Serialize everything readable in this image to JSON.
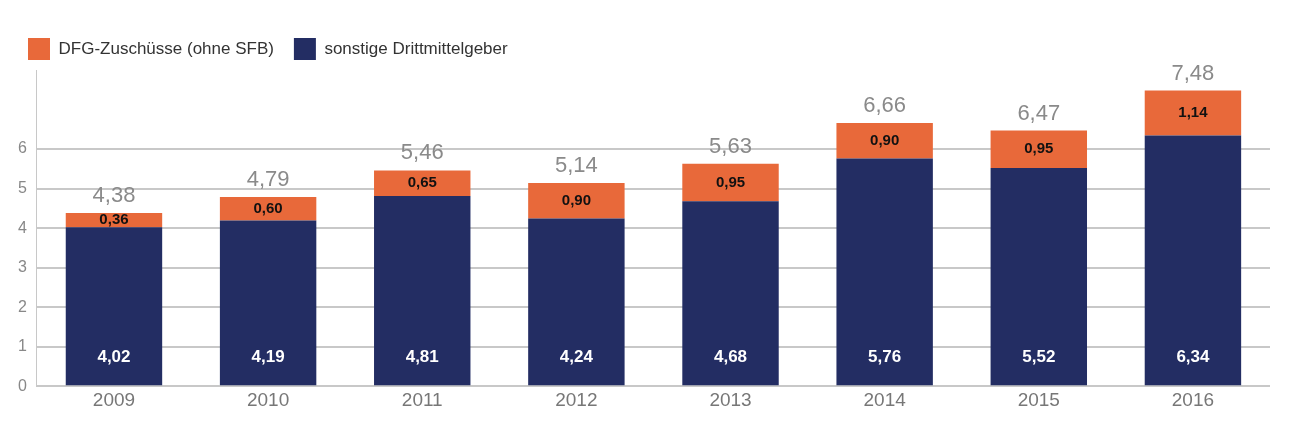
{
  "chart_data": {
    "type": "bar",
    "stacked": true,
    "categories": [
      "2009",
      "2010",
      "2011",
      "2012",
      "2013",
      "2014",
      "2015",
      "2016"
    ],
    "series": [
      {
        "name": "sonstige Drittmittelgeber",
        "color": "#232d63",
        "values": [
          4.02,
          4.19,
          4.81,
          4.24,
          4.68,
          5.76,
          5.52,
          6.34
        ],
        "value_labels": [
          "4,02",
          "4,19",
          "4,81",
          "4,24",
          "4,68",
          "5,76",
          "5,52",
          "6,34"
        ]
      },
      {
        "name": "DFG-Zuschüsse (ohne SFB)",
        "color": "#e8693a",
        "values": [
          0.36,
          0.6,
          0.65,
          0.9,
          0.95,
          0.9,
          0.95,
          1.14
        ],
        "value_labels": [
          "0,36",
          "0,60",
          "0,65",
          "0,90",
          "0,95",
          "0,90",
          "0,95",
          "1,14"
        ]
      }
    ],
    "totals": [
      "4,38",
      "4,79",
      "5,46",
      "5,14",
      "5,63",
      "6,66",
      "6,47",
      "7,48"
    ],
    "ylim": [
      0,
      8
    ],
    "yticks": [
      0,
      1,
      2,
      3,
      4,
      5,
      6
    ],
    "grid": "y",
    "legend": "top left"
  }
}
